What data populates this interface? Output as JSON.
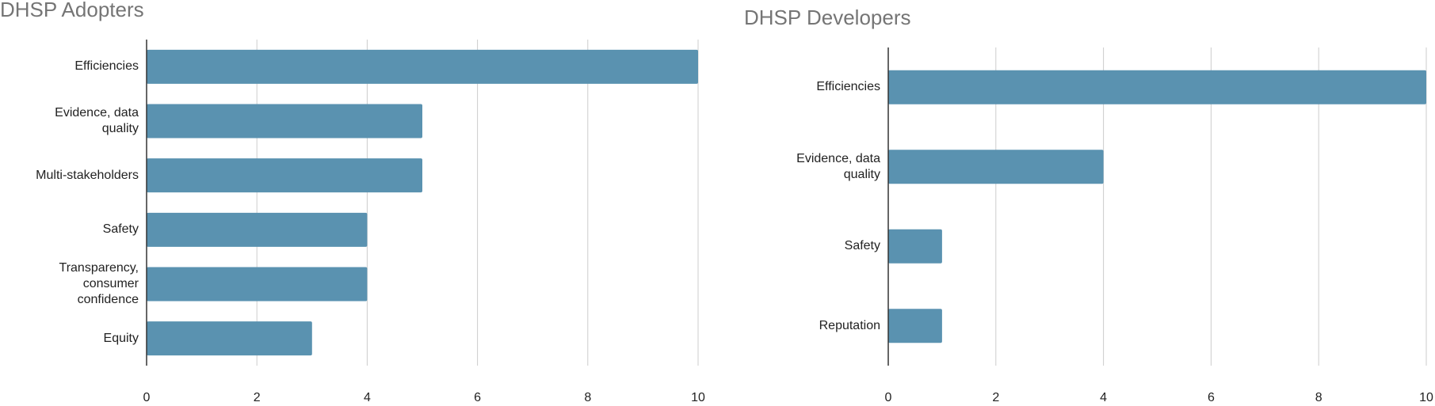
{
  "chart_data": [
    {
      "type": "bar",
      "orientation": "horizontal",
      "title": "DHSP Adopters",
      "categories": [
        "Efficiencies",
        "Evidence, data quality",
        "Multi-stakeholders",
        "Safety",
        "Transparency, consumer confidence",
        "Equity"
      ],
      "values": [
        10,
        5,
        5,
        4,
        4,
        3
      ],
      "color": "#5a92b0",
      "xlim": [
        0,
        10
      ],
      "xticks": [
        0,
        2,
        4,
        6,
        8,
        10
      ],
      "grid": true
    },
    {
      "type": "bar",
      "orientation": "horizontal",
      "title": "DHSP Developers",
      "categories": [
        "Efficiencies",
        "Evidence, data quality",
        "Safety",
        "Reputation"
      ],
      "values": [
        10,
        4,
        1,
        1
      ],
      "color": "#5a92b0",
      "xlim": [
        0,
        10
      ],
      "xticks": [
        0,
        2,
        4,
        6,
        8,
        10
      ],
      "grid": true
    }
  ]
}
